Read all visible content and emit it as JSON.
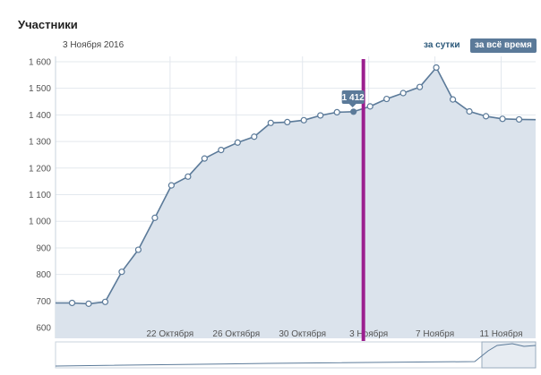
{
  "header": {
    "title": "Участники",
    "date": "3 Ноября 2016",
    "range_day": "за сутки",
    "range_all": "за всё время"
  },
  "colors": {
    "line": "#5b7a99",
    "area": "#dbe3ec",
    "grid": "#e3e8ee",
    "marker": "#9b1f8f",
    "tooltip_bg": "#5b7a99"
  },
  "chart_data": {
    "type": "area",
    "xlabel": "",
    "ylabel": "",
    "ylim": [
      560,
      1620
    ],
    "yticks": [
      600,
      700,
      800,
      900,
      1000,
      1100,
      1200,
      1300,
      1400,
      1500,
      1600
    ],
    "ytick_labels": [
      "600",
      "700",
      "800",
      "900",
      "1 000",
      "1 100",
      "1 200",
      "1 300",
      "1 400",
      "1 500",
      "1 600"
    ],
    "xticks": [
      "22 Октября",
      "26 Октября",
      "30 Октября",
      "3 Ноября",
      "7 Ноября",
      "11 Ноября"
    ],
    "x_start": "2016-10-14",
    "series": [
      {
        "values": [
          {
            "date": "2016-10-15",
            "value": 693
          },
          {
            "date": "2016-10-16",
            "value": 690
          },
          {
            "date": "2016-10-17",
            "value": 697
          },
          {
            "date": "2016-10-18",
            "value": 810
          },
          {
            "date": "2016-10-19",
            "value": 893
          },
          {
            "date": "2016-10-20",
            "value": 1013
          },
          {
            "date": "2016-10-21",
            "value": 1135
          },
          {
            "date": "2016-10-22",
            "value": 1168
          },
          {
            "date": "2016-10-23",
            "value": 1236
          },
          {
            "date": "2016-10-24",
            "value": 1268
          },
          {
            "date": "2016-10-25",
            "value": 1296
          },
          {
            "date": "2016-10-26",
            "value": 1318
          },
          {
            "date": "2016-10-27",
            "value": 1370
          },
          {
            "date": "2016-10-28",
            "value": 1373
          },
          {
            "date": "2016-10-29",
            "value": 1380
          },
          {
            "date": "2016-10-30",
            "value": 1398
          },
          {
            "date": "2016-10-31",
            "value": 1410
          },
          {
            "date": "2016-11-01",
            "value": 1412
          },
          {
            "date": "2016-11-02",
            "value": 1432
          },
          {
            "date": "2016-11-03",
            "value": 1460
          },
          {
            "date": "2016-11-04",
            "value": 1482
          },
          {
            "date": "2016-11-05",
            "value": 1505
          },
          {
            "date": "2016-11-06",
            "value": 1578
          },
          {
            "date": "2016-11-07",
            "value": 1458
          },
          {
            "date": "2016-11-08",
            "value": 1413
          },
          {
            "date": "2016-11-09",
            "value": 1395
          },
          {
            "date": "2016-11-10",
            "value": 1385
          },
          {
            "date": "2016-11-11",
            "value": 1383
          }
        ]
      }
    ],
    "tooltip": {
      "date": "2016-11-01",
      "value": 1412,
      "text": "1 412"
    },
    "grid": true
  }
}
